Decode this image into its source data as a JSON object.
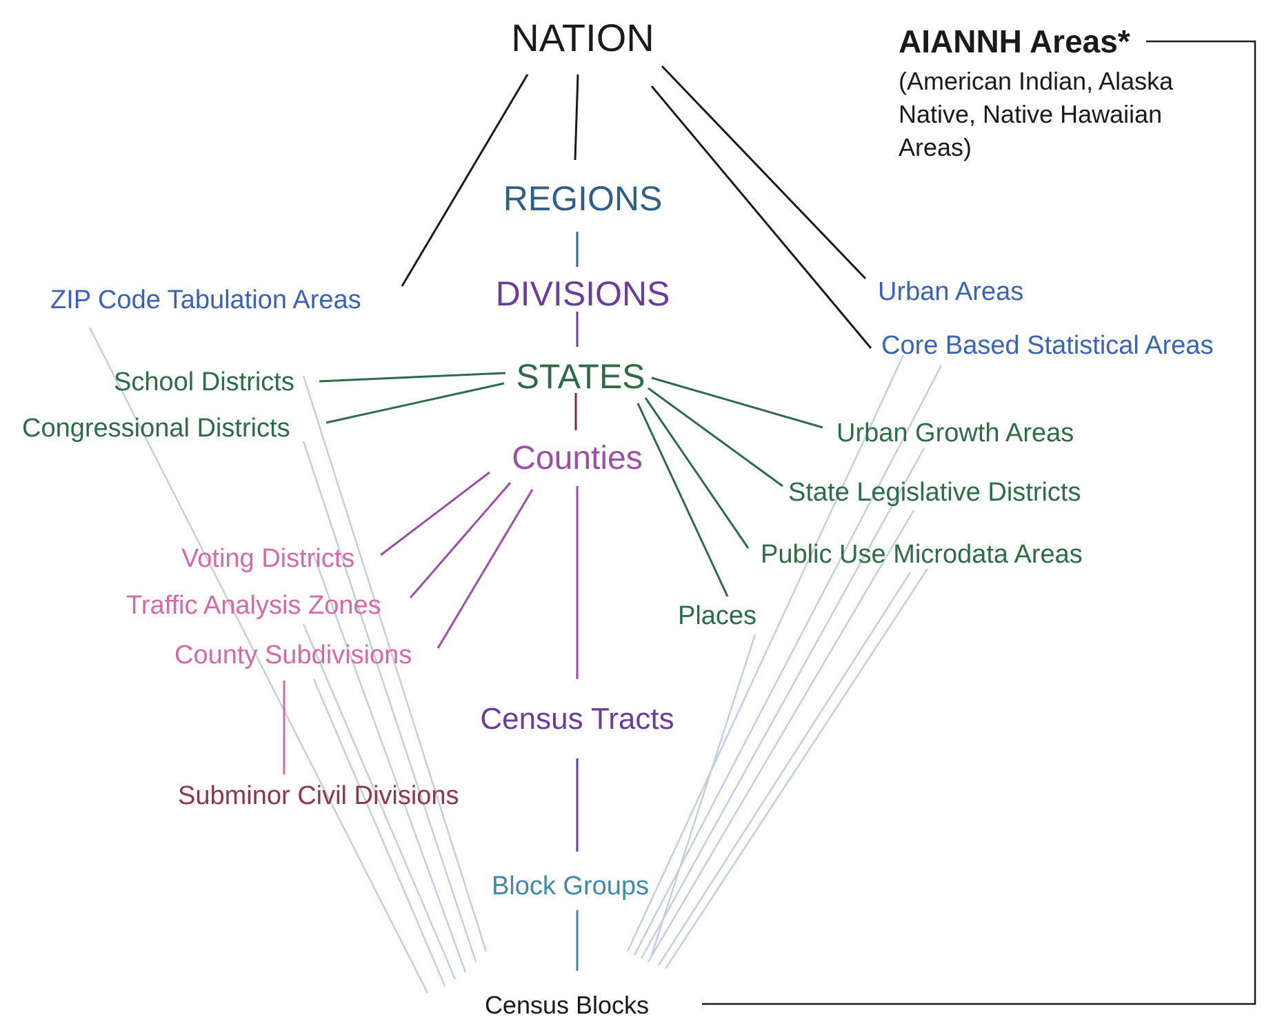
{
  "nodes": {
    "nation": {
      "label": "NATION",
      "color": "#1a1a1a"
    },
    "aiannh_title": {
      "label": "AIANNH Areas*",
      "color": "#1a1a1a"
    },
    "aiannh_desc_1": {
      "label": "(American Indian, Alaska",
      "color": "#1a1a1a"
    },
    "aiannh_desc_2": {
      "label": "Native, Native Hawaiian",
      "color": "#1a1a1a"
    },
    "aiannh_desc_3": {
      "label": "Areas)",
      "color": "#1a1a1a"
    },
    "regions": {
      "label": "REGIONS",
      "color": "#2f5f86"
    },
    "divisions": {
      "label": "DIVISIONS",
      "color": "#6a3d9a"
    },
    "states": {
      "label": "STATES",
      "color": "#2e6b46"
    },
    "zcta": {
      "label": "ZIP Code Tabulation Areas",
      "color": "#3a63b4"
    },
    "urban_areas": {
      "label": "Urban Areas",
      "color": "#3a63b4"
    },
    "cbsa": {
      "label": "Core Based Statistical Areas",
      "color": "#3a63b4"
    },
    "school_districts": {
      "label": "School Districts",
      "color": "#2e6b46"
    },
    "congressional_districts": {
      "label": "Congressional Districts",
      "color": "#2e6b46"
    },
    "urban_growth_areas": {
      "label": "Urban Growth Areas",
      "color": "#2e6b46"
    },
    "state_legislative_districts": {
      "label": "State Legislative Districts",
      "color": "#2e6b46"
    },
    "puma": {
      "label": "Public Use Microdata Areas",
      "color": "#2e6b46"
    },
    "places": {
      "label": "Places",
      "color": "#2e6b46"
    },
    "counties": {
      "label": "Counties",
      "color": "#9b4fa6"
    },
    "voting_districts": {
      "label": "Voting Districts",
      "color": "#d46aa6"
    },
    "traffic_analysis_zones": {
      "label": "Traffic Analysis Zones",
      "color": "#d46aa6"
    },
    "county_subdivisions": {
      "label": "County Subdivisions",
      "color": "#d46aa6"
    },
    "subminor_civil_divisions": {
      "label": "Subminor Civil Divisions",
      "color": "#8e3550"
    },
    "census_tracts": {
      "label": "Census Tracts",
      "color": "#6a3d9a"
    },
    "block_groups": {
      "label": "Block Groups",
      "color": "#3f8aa6"
    },
    "census_blocks": {
      "label": "Census Blocks",
      "color": "#1a1a1a"
    }
  },
  "edge_colors": {
    "nation": "#1a1a1a",
    "regions": "#2f6a8a",
    "divisions": "#6a3d9a",
    "states": "#7a2a4a",
    "states_branch": "#2e6b46",
    "counties": "#9b4fa6",
    "county_sub": "#d46aa6",
    "tracts": "#6a3d9a",
    "blockgroups": "#3f8aa6",
    "faint": "#c5cde0",
    "bracket": "#1a1a1a"
  }
}
